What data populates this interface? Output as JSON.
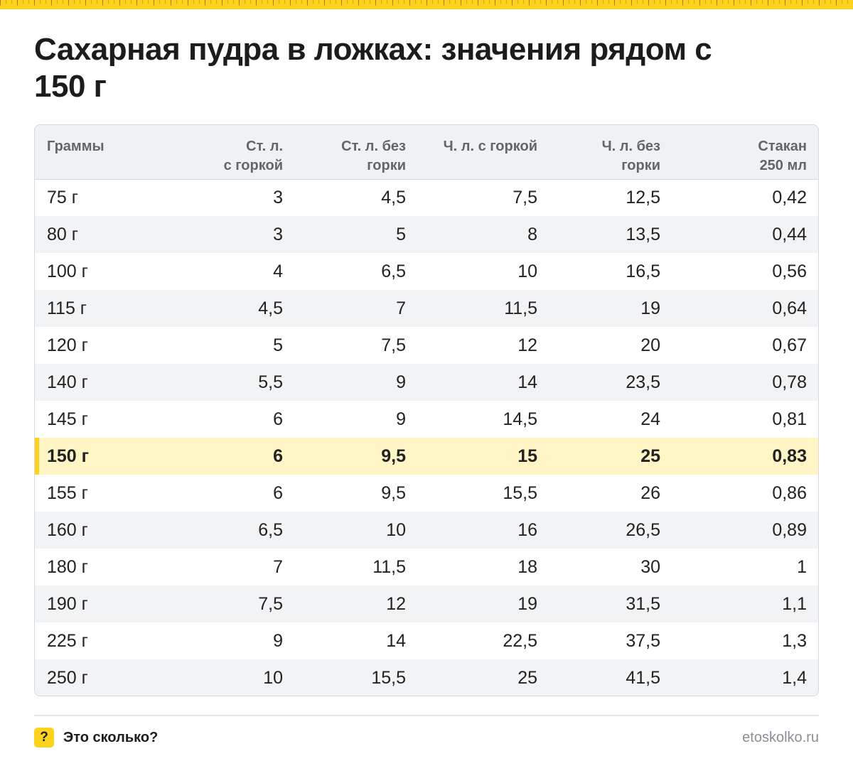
{
  "title": "Сахарная пудра в ложках: значения рядом с 150 г",
  "table": {
    "headers": [
      [
        "Граммы"
      ],
      [
        "Ст. л.",
        "с горкой"
      ],
      [
        "Ст. л. без",
        "горки"
      ],
      [
        "Ч. л. с горкой"
      ],
      [
        "Ч. л. без",
        "горки"
      ],
      [
        "Стакан",
        "250 мл"
      ]
    ],
    "highlighted_row": 7,
    "rows": [
      [
        "75 г",
        "3",
        "4,5",
        "7,5",
        "12,5",
        "0,42"
      ],
      [
        "80 г",
        "3",
        "5",
        "8",
        "13,5",
        "0,44"
      ],
      [
        "100 г",
        "4",
        "6,5",
        "10",
        "16,5",
        "0,56"
      ],
      [
        "115 г",
        "4,5",
        "7",
        "11,5",
        "19",
        "0,64"
      ],
      [
        "120 г",
        "5",
        "7,5",
        "12",
        "20",
        "0,67"
      ],
      [
        "140 г",
        "5,5",
        "9",
        "14",
        "23,5",
        "0,78"
      ],
      [
        "145 г",
        "6",
        "9",
        "14,5",
        "24",
        "0,81"
      ],
      [
        "150 г",
        "6",
        "9,5",
        "15",
        "25",
        "0,83"
      ],
      [
        "155 г",
        "6",
        "9,5",
        "15,5",
        "26",
        "0,86"
      ],
      [
        "160 г",
        "6,5",
        "10",
        "16",
        "26,5",
        "0,89"
      ],
      [
        "180 г",
        "7",
        "11,5",
        "18",
        "30",
        "1"
      ],
      [
        "190 г",
        "7,5",
        "12",
        "19",
        "31,5",
        "1,1"
      ],
      [
        "225 г",
        "9",
        "14",
        "22,5",
        "37,5",
        "1,3"
      ],
      [
        "250 г",
        "10",
        "15,5",
        "25",
        "41,5",
        "1,4"
      ]
    ]
  },
  "footer": {
    "badge": "?",
    "brand": "Это сколько?",
    "site": "etoskolko.ru"
  },
  "colors": {
    "accent": "#fcd21d",
    "highlight_row": "#fff5c5",
    "header_bg": "#eff1f3",
    "stripe": "#f2f3f5"
  }
}
